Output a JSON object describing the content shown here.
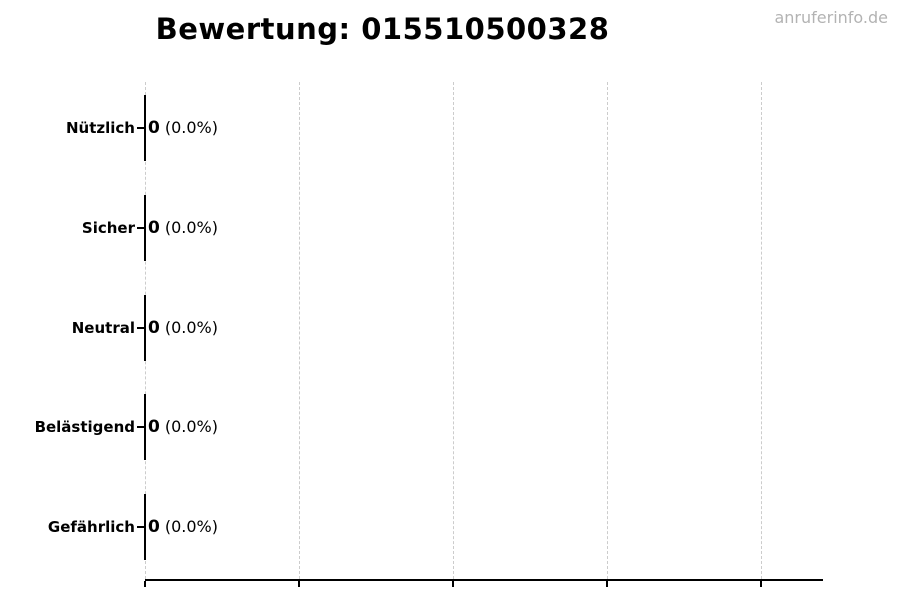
{
  "page": {
    "background": "#ffffff",
    "watermark": "anruferinfo.de"
  },
  "chart_data": {
    "type": "bar",
    "orientation": "horizontal",
    "title": "Bewertung: 015510500328",
    "categories": [
      "Nützlich",
      "Sicher",
      "Neutral",
      "Belästigend",
      "Gefährlich"
    ],
    "values": [
      0,
      0,
      0,
      0,
      0
    ],
    "percentages": [
      0.0,
      0.0,
      0.0,
      0.0,
      0.0
    ],
    "value_labels": [
      {
        "count": "0",
        "pct": "(0.0%)"
      },
      {
        "count": "0",
        "pct": "(0.0%)"
      },
      {
        "count": "0",
        "pct": "(0.0%)"
      },
      {
        "count": "0",
        "pct": "(0.0%)"
      },
      {
        "count": "0",
        "pct": "(0.0%)"
      }
    ],
    "xlim": [
      0,
      4.4
    ],
    "x_gridline_values": [
      0,
      1,
      2,
      3,
      4
    ],
    "x_tick_labels_visible": false,
    "grid": {
      "orientation": "vertical",
      "style": "dashed",
      "color": "#cccccc"
    },
    "legend": "none",
    "colors": {
      "text": "#000000",
      "axis": "#000000",
      "bar_edge": "#000000",
      "watermark": "#b3b3b3"
    }
  }
}
